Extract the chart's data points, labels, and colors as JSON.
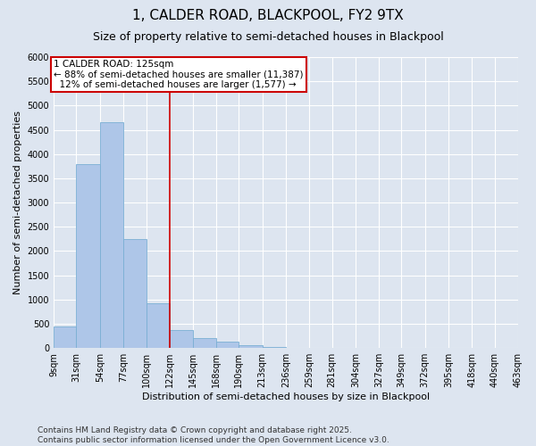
{
  "title": "1, CALDER ROAD, BLACKPOOL, FY2 9TX",
  "subtitle": "Size of property relative to semi-detached houses in Blackpool",
  "xlabel": "Distribution of semi-detached houses by size in Blackpool",
  "ylabel": "Number of semi-detached properties",
  "property_label": "1 CALDER ROAD: 125sqm",
  "pct_smaller": 88,
  "count_smaller": 11387,
  "pct_larger": 12,
  "count_larger": 1577,
  "bins": [
    9,
    31,
    54,
    77,
    100,
    122,
    145,
    168,
    190,
    213,
    236,
    259,
    281,
    304,
    327,
    349,
    372,
    395,
    418,
    440,
    463
  ],
  "bin_labels": [
    "9sqm",
    "31sqm",
    "54sqm",
    "77sqm",
    "100sqm",
    "122sqm",
    "145sqm",
    "168sqm",
    "190sqm",
    "213sqm",
    "236sqm",
    "259sqm",
    "281sqm",
    "304sqm",
    "327sqm",
    "349sqm",
    "372sqm",
    "395sqm",
    "418sqm",
    "440sqm",
    "463sqm"
  ],
  "counts": [
    450,
    3800,
    4650,
    2250,
    930,
    380,
    200,
    130,
    60,
    20,
    5,
    2,
    1,
    0,
    0,
    0,
    0,
    0,
    0,
    0
  ],
  "bar_color": "#aec6e8",
  "bar_edge_color": "#7aafd4",
  "vline_color": "#cc0000",
  "vline_x": 122,
  "annotation_box_color": "#cc0000",
  "background_color": "#dde5f0",
  "grid_color": "#ffffff",
  "ylim": [
    0,
    6000
  ],
  "yticks": [
    0,
    500,
    1000,
    1500,
    2000,
    2500,
    3000,
    3500,
    4000,
    4500,
    5000,
    5500,
    6000
  ],
  "footnote": "Contains HM Land Registry data © Crown copyright and database right 2025.\nContains public sector information licensed under the Open Government Licence v3.0.",
  "title_fontsize": 11,
  "subtitle_fontsize": 9,
  "label_fontsize": 8,
  "tick_fontsize": 7,
  "annot_fontsize": 7.5,
  "footnote_fontsize": 6.5
}
